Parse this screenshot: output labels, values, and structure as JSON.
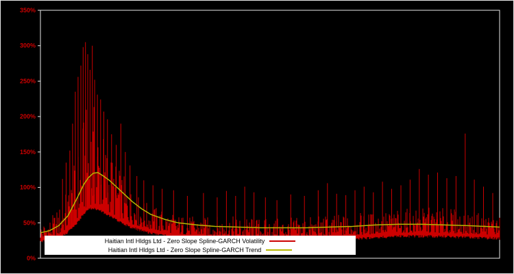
{
  "colors": {
    "background": "#000000",
    "frame": "#e8e8e8",
    "tick_label": "#cc0000",
    "legend_bg": "#ffffff",
    "legend_text": "#000000"
  },
  "chart_data": {
    "type": "line",
    "title": "",
    "xlabel": "",
    "ylabel": "",
    "ylim": [
      0,
      350
    ],
    "yticks": [
      0,
      50,
      100,
      150,
      200,
      250,
      300,
      350
    ],
    "ytick_labels": [
      "0%",
      "50%",
      "100%",
      "150%",
      "200%",
      "250%",
      "300%",
      "350%"
    ],
    "x_range": [
      0,
      1
    ],
    "grid": false,
    "legend_position": "bottom-center",
    "series": [
      {
        "name": "Haitian Intl Hldgs Ltd - Zero Slope Spline-GARCH Volatility",
        "color": "#cc0000",
        "style": "noisy-spiky",
        "envelope": [
          [
            0.0,
            28,
            48
          ],
          [
            0.02,
            30,
            56
          ],
          [
            0.04,
            33,
            72
          ],
          [
            0.06,
            42,
            100
          ],
          [
            0.08,
            55,
            150
          ],
          [
            0.095,
            68,
            205
          ],
          [
            0.11,
            76,
            228
          ],
          [
            0.125,
            74,
            205
          ],
          [
            0.14,
            69,
            175
          ],
          [
            0.16,
            61,
            142
          ],
          [
            0.18,
            54,
            118
          ],
          [
            0.2,
            48,
            96
          ],
          [
            0.23,
            42,
            80
          ],
          [
            0.26,
            38,
            70
          ],
          [
            0.3,
            34,
            62
          ],
          [
            0.35,
            32,
            58
          ],
          [
            0.4,
            31,
            60
          ],
          [
            0.45,
            30,
            58
          ],
          [
            0.5,
            30,
            56
          ],
          [
            0.55,
            30,
            58
          ],
          [
            0.6,
            31,
            60
          ],
          [
            0.65,
            32,
            62
          ],
          [
            0.7,
            33,
            64
          ],
          [
            0.75,
            35,
            67
          ],
          [
            0.8,
            36,
            70
          ],
          [
            0.85,
            36,
            72
          ],
          [
            0.9,
            35,
            70
          ],
          [
            0.95,
            34,
            66
          ],
          [
            1.0,
            33,
            60
          ]
        ],
        "spikes": [
          [
            0.048,
            112
          ],
          [
            0.056,
            135
          ],
          [
            0.064,
            152
          ],
          [
            0.07,
            190
          ],
          [
            0.076,
            235
          ],
          [
            0.082,
            256
          ],
          [
            0.088,
            272
          ],
          [
            0.093,
            298
          ],
          [
            0.098,
            305
          ],
          [
            0.103,
            288
          ],
          [
            0.108,
            266
          ],
          [
            0.113,
            300
          ],
          [
            0.118,
            252
          ],
          [
            0.124,
            231
          ],
          [
            0.131,
            224
          ],
          [
            0.138,
            207
          ],
          [
            0.146,
            196
          ],
          [
            0.155,
            175
          ],
          [
            0.165,
            160
          ],
          [
            0.175,
            190
          ],
          [
            0.185,
            150
          ],
          [
            0.195,
            131
          ],
          [
            0.21,
            116
          ],
          [
            0.225,
            110
          ],
          [
            0.245,
            103
          ],
          [
            0.265,
            98
          ],
          [
            0.29,
            96
          ],
          [
            0.32,
            88
          ],
          [
            0.355,
            92
          ],
          [
            0.385,
            86
          ],
          [
            0.405,
            95
          ],
          [
            0.425,
            88
          ],
          [
            0.445,
            101
          ],
          [
            0.465,
            93
          ],
          [
            0.49,
            86
          ],
          [
            0.515,
            82
          ],
          [
            0.545,
            90
          ],
          [
            0.575,
            88
          ],
          [
            0.605,
            96
          ],
          [
            0.625,
            106
          ],
          [
            0.645,
            91
          ],
          [
            0.665,
            89
          ],
          [
            0.685,
            96
          ],
          [
            0.705,
            101
          ],
          [
            0.725,
            93
          ],
          [
            0.745,
            108
          ],
          [
            0.765,
            98
          ],
          [
            0.785,
            103
          ],
          [
            0.805,
            111
          ],
          [
            0.825,
            126
          ],
          [
            0.845,
            118
          ],
          [
            0.865,
            121
          ],
          [
            0.885,
            113
          ],
          [
            0.905,
            116
          ],
          [
            0.925,
            176
          ],
          [
            0.945,
            111
          ],
          [
            0.965,
            101
          ],
          [
            0.985,
            92
          ]
        ]
      },
      {
        "name": "Haitian Intl Hldgs Ltd - Zero Slope Spline-GARCH Trend",
        "color": "#b8b800",
        "style": "smooth",
        "points": [
          [
            0.0,
            36
          ],
          [
            0.02,
            39
          ],
          [
            0.04,
            46
          ],
          [
            0.06,
            60
          ],
          [
            0.08,
            85
          ],
          [
            0.095,
            105
          ],
          [
            0.105,
            114
          ],
          [
            0.115,
            120
          ],
          [
            0.125,
            121
          ],
          [
            0.135,
            117
          ],
          [
            0.15,
            110
          ],
          [
            0.165,
            101
          ],
          [
            0.18,
            92
          ],
          [
            0.2,
            80
          ],
          [
            0.22,
            70
          ],
          [
            0.24,
            62
          ],
          [
            0.27,
            55
          ],
          [
            0.3,
            50
          ],
          [
            0.34,
            47
          ],
          [
            0.38,
            45
          ],
          [
            0.43,
            44
          ],
          [
            0.48,
            43
          ],
          [
            0.53,
            43
          ],
          [
            0.58,
            43
          ],
          [
            0.63,
            44
          ],
          [
            0.68,
            45
          ],
          [
            0.73,
            47
          ],
          [
            0.78,
            48
          ],
          [
            0.83,
            48
          ],
          [
            0.88,
            47
          ],
          [
            0.93,
            46
          ],
          [
            1.0,
            44
          ]
        ]
      }
    ]
  }
}
